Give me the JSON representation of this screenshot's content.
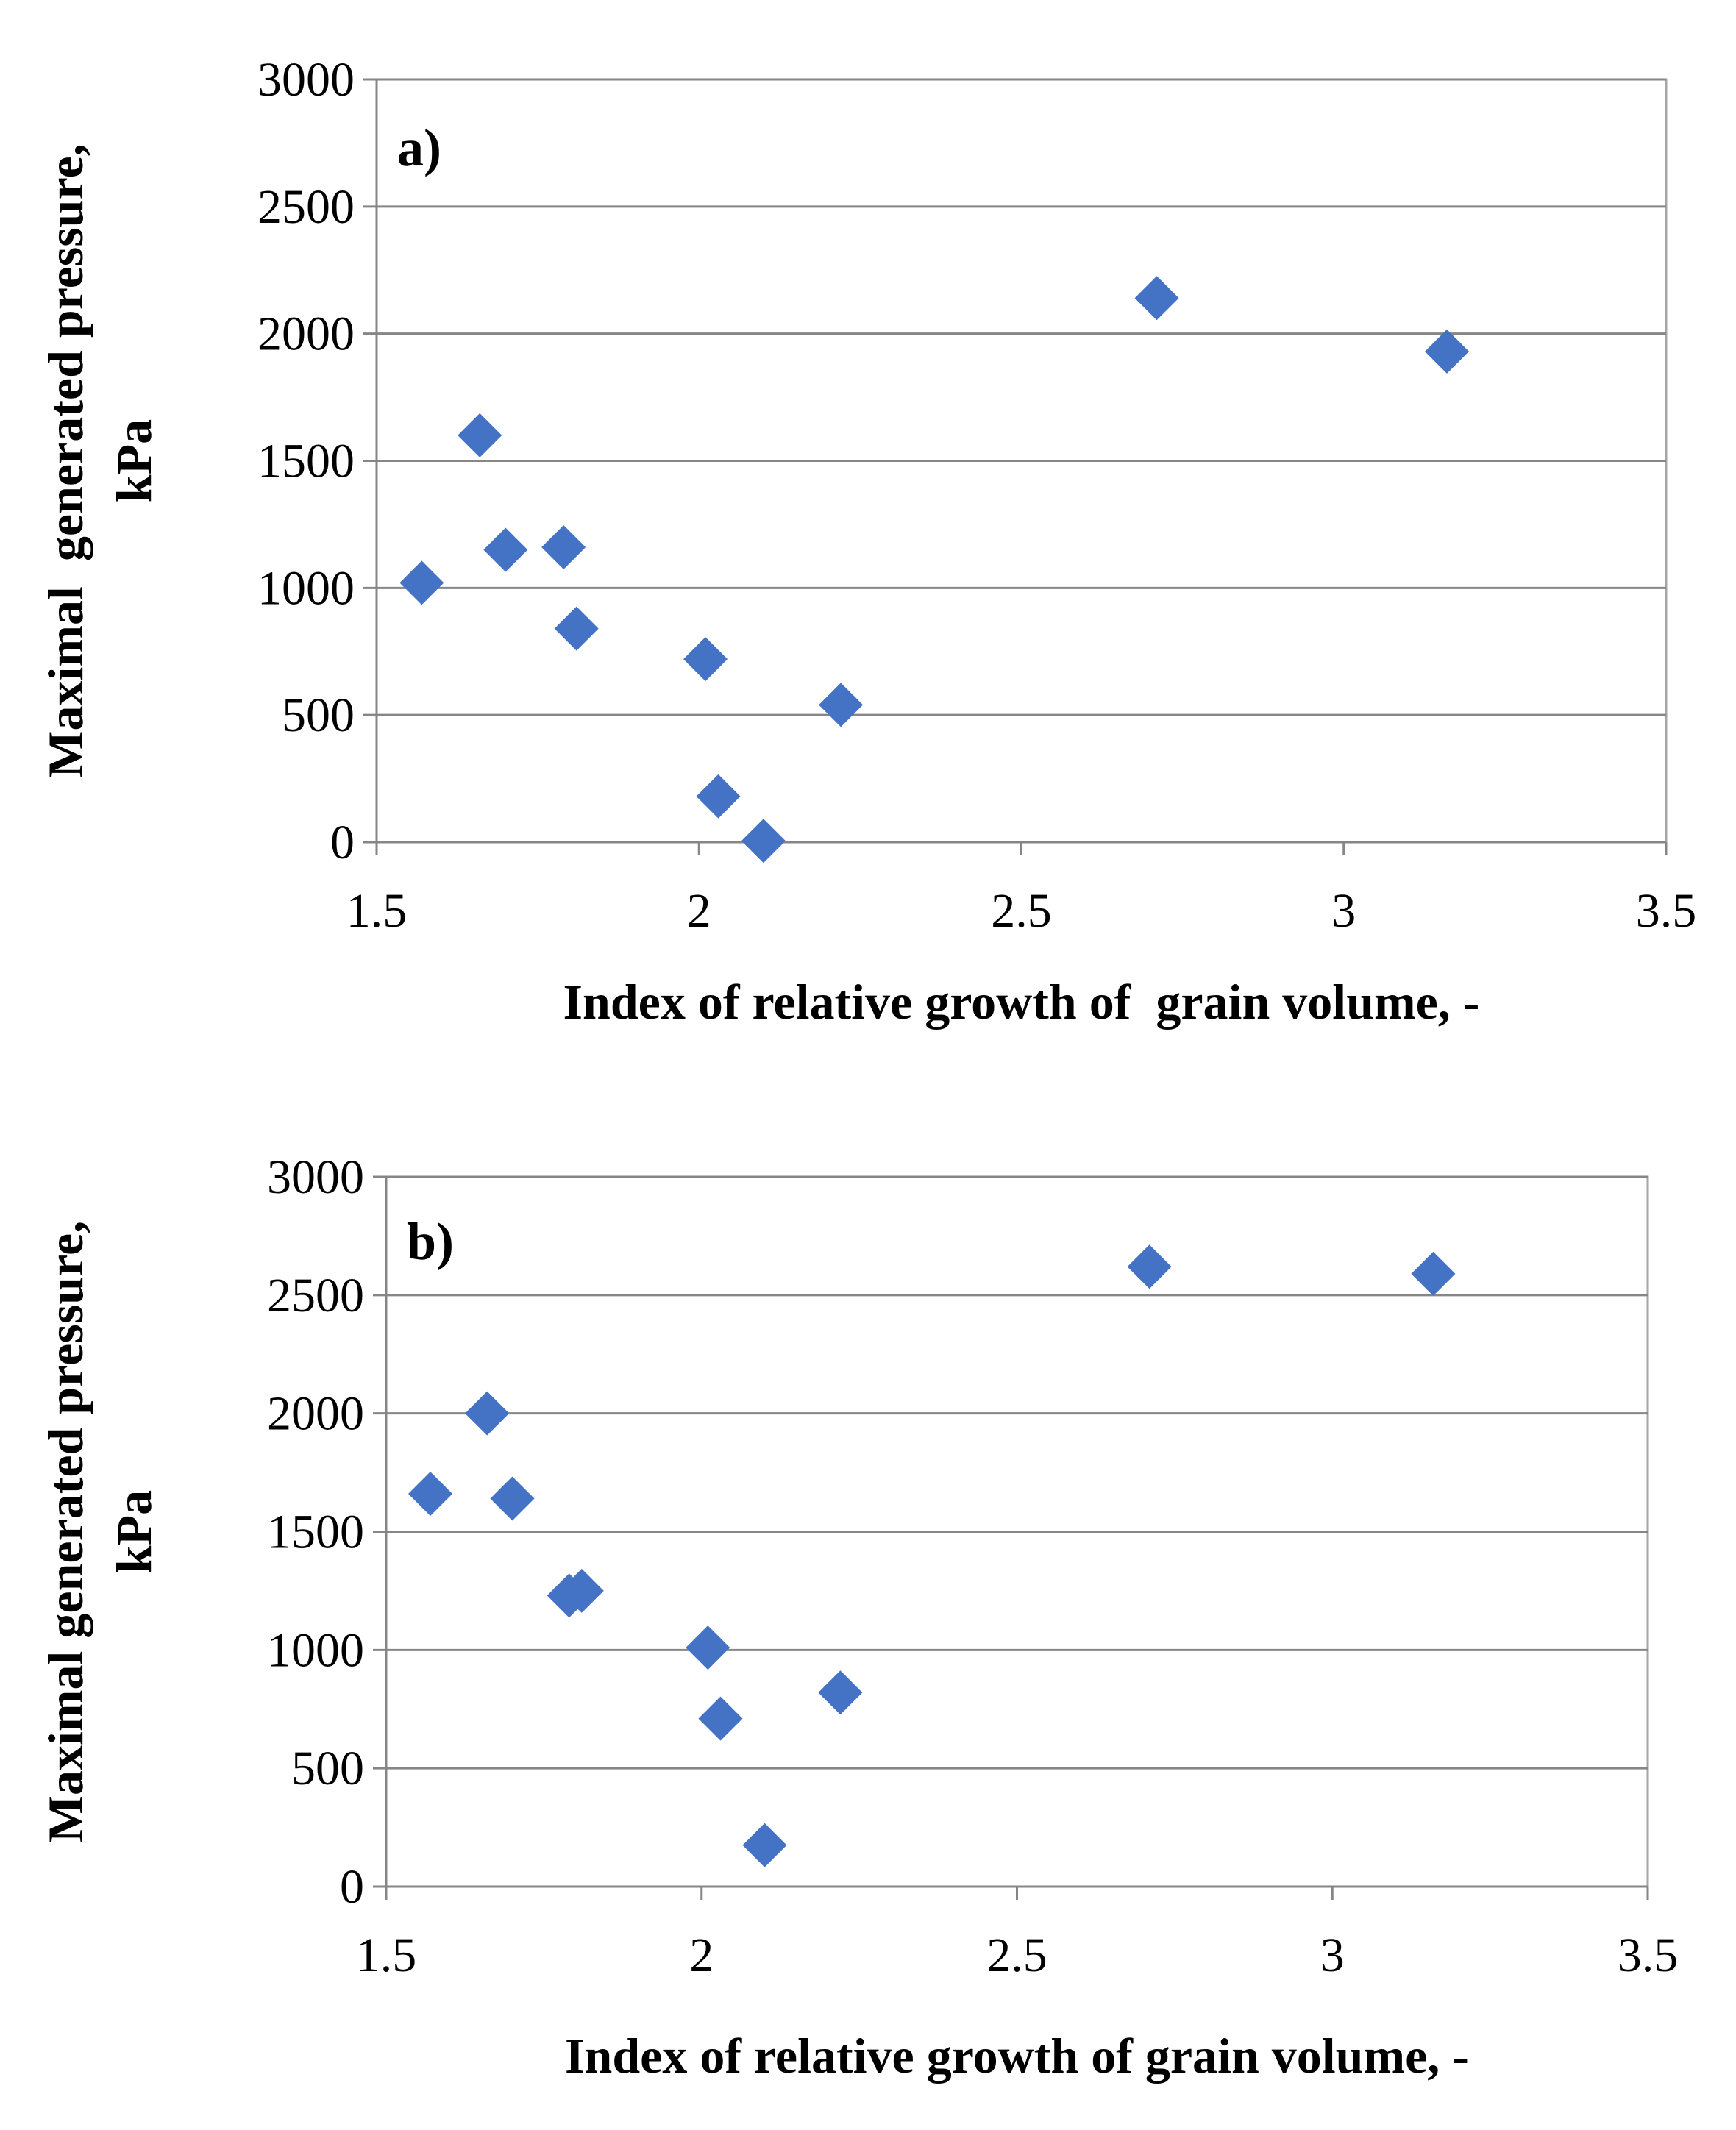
{
  "chart_data": [
    {
      "type": "scatter",
      "panel_label": "a)",
      "xlabel": "Index of relative growth of  grain volume, -",
      "ylabel": [
        "Maximal  generated pressure,",
        "kPa"
      ],
      "xlim": [
        1.5,
        3.5
      ],
      "ylim": [
        0,
        3000
      ],
      "xticks": [
        "1.5",
        "2",
        "2.5",
        "3",
        "3.5"
      ],
      "yticks": [
        "0",
        "500",
        "1000",
        "1500",
        "2000",
        "2500",
        "3000"
      ],
      "grid": "horizontal",
      "marker": "diamond",
      "color": "#4472c4",
      "points": [
        {
          "x": 1.57,
          "y": 1020
        },
        {
          "x": 1.66,
          "y": 1600
        },
        {
          "x": 1.7,
          "y": 1150
        },
        {
          "x": 1.79,
          "y": 1160
        },
        {
          "x": 1.81,
          "y": 840
        },
        {
          "x": 2.01,
          "y": 720
        },
        {
          "x": 2.03,
          "y": 180
        },
        {
          "x": 2.1,
          "y": 5
        },
        {
          "x": 2.22,
          "y": 540
        },
        {
          "x": 2.71,
          "y": 2140
        },
        {
          "x": 3.16,
          "y": 1930
        }
      ]
    },
    {
      "type": "scatter",
      "panel_label": "b)",
      "xlabel": "Index of relative growth of grain volume, -",
      "ylabel": [
        "Maximal generated pressure,",
        "kPa"
      ],
      "xlim": [
        1.5,
        3.5
      ],
      "ylim": [
        0,
        3000
      ],
      "xticks": [
        "1.5",
        "2",
        "2.5",
        "3",
        "3.5"
      ],
      "yticks": [
        "0",
        "500",
        "1000",
        "1500",
        "2000",
        "2500",
        "3000"
      ],
      "grid": "horizontal",
      "marker": "diamond",
      "color": "#4472c4",
      "points": [
        {
          "x": 1.57,
          "y": 1660
        },
        {
          "x": 1.66,
          "y": 2000
        },
        {
          "x": 1.7,
          "y": 1640
        },
        {
          "x": 1.79,
          "y": 1230
        },
        {
          "x": 1.81,
          "y": 1250
        },
        {
          "x": 2.01,
          "y": 1010
        },
        {
          "x": 2.03,
          "y": 710
        },
        {
          "x": 2.1,
          "y": 175
        },
        {
          "x": 2.22,
          "y": 820
        },
        {
          "x": 2.71,
          "y": 2620
        },
        {
          "x": 3.16,
          "y": 2590
        }
      ]
    }
  ]
}
